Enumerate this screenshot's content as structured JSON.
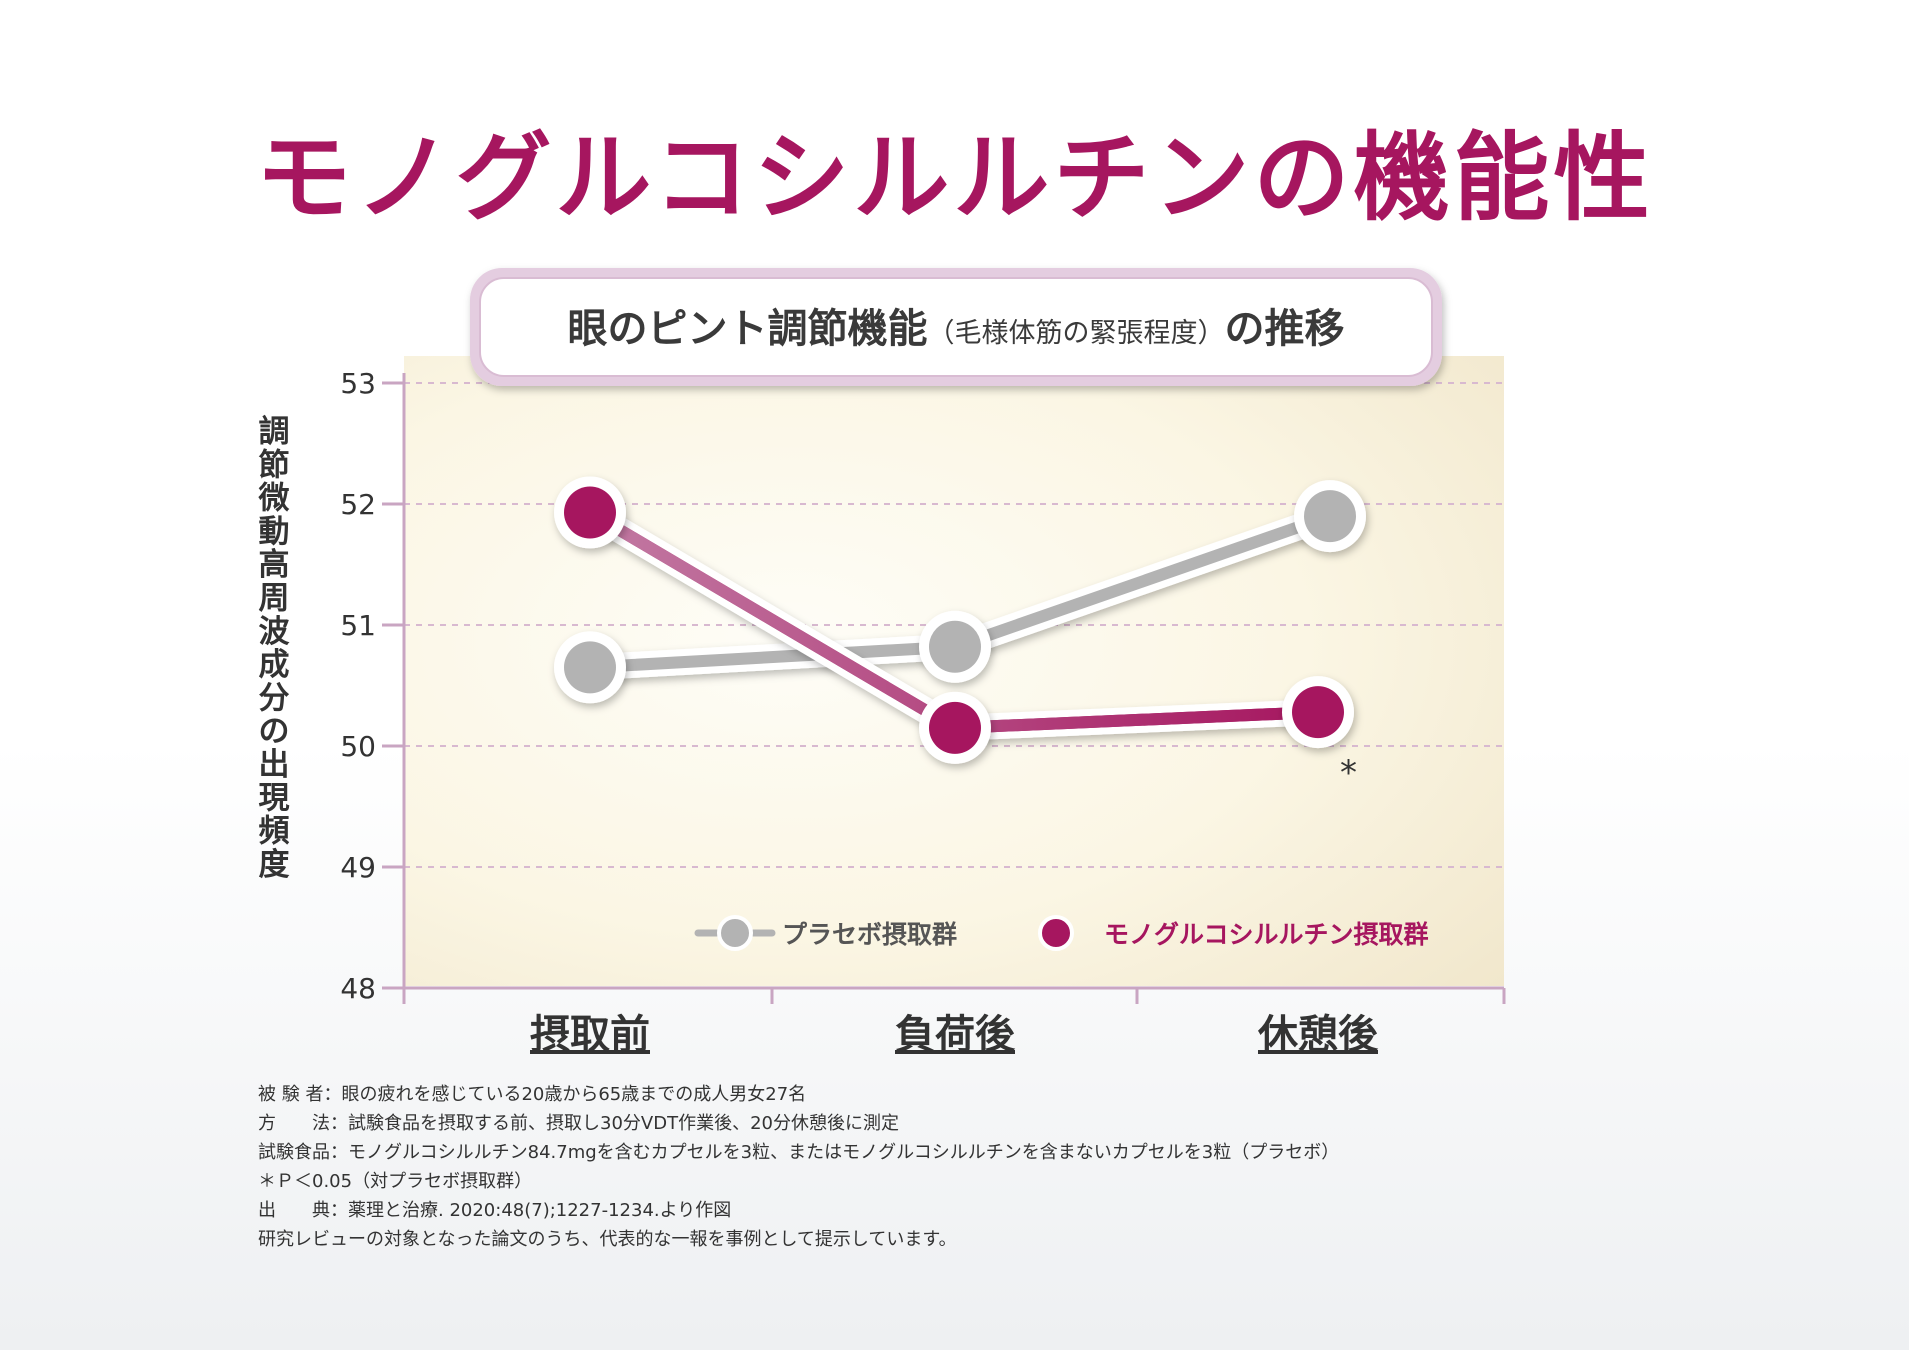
{
  "title": "モノグルコシルルチンの機能性",
  "chart_data": {
    "type": "line",
    "title": "眼のピント調節機能",
    "title_paren": "（毛様体筋の緊張程度）",
    "title_suffix": "の推移",
    "ylabel": "調節微動高周波成分の出現頻度",
    "categories": [
      "摂取前",
      "負荷後",
      "休憩後"
    ],
    "ylim": [
      48,
      53
    ],
    "yticks": [
      "48",
      "49",
      "50",
      "51",
      "52",
      "53"
    ],
    "series": [
      {
        "name": "プラセボ摂取群",
        "values": [
          50.65,
          50.82,
          51.9
        ],
        "color": "#b3b3b3"
      },
      {
        "name": "モノグルコシルルチン摂取群",
        "values": [
          51.93,
          50.15,
          50.28
        ],
        "color": "#a6165f"
      }
    ],
    "significance": {
      "series": 1,
      "point": 2,
      "mark": "*"
    },
    "grid": true,
    "legend": "bottom-right"
  },
  "notes": [
    "被 験 者：眼の疲れを感じている20歳から65歳までの成人男女27名",
    "方　　法：試験食品を摂取する前、摂取し30分VDT作業後、20分休憩後に測定",
    "試験食品：モノグルコシルルチン84.7mgを含むカプセルを3粒、またはモノグルコシルルチンを含まないカプセルを3粒（プラセボ）",
    "＊Ｐ＜0.05（対プラセボ摂取群）",
    "出　　典：薬理と治療. 2020:48(7);1227-1234.より作図",
    "研究レビューの対象となった論文のうち、代表的な一報を事例として提示しています。"
  ]
}
